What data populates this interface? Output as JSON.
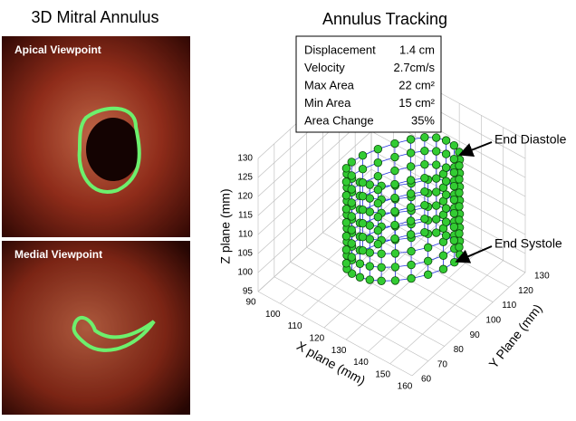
{
  "left": {
    "title": "3D Mitral Annulus",
    "panels": [
      "Apical Viewpoint",
      "Medial Viewpoint"
    ]
  },
  "right": {
    "title": "Annulus Tracking",
    "stats": [
      [
        "Displacement",
        "1.4 cm"
      ],
      [
        "Velocity",
        "2.7cm/s"
      ],
      [
        "Max Area",
        "22 cm²"
      ],
      [
        "Min Area",
        "15 cm²"
      ],
      [
        "Area Change",
        "35%"
      ]
    ],
    "annotations": [
      "End Diastole",
      "End Systole"
    ],
    "z_axis": {
      "label": "Z plane (mm)",
      "ticks": [
        "95",
        "100",
        "105",
        "110",
        "115",
        "120",
        "125",
        "130"
      ]
    },
    "x_axis": {
      "label": "X plane (mm)",
      "ticks": [
        "90",
        "100",
        "110",
        "120",
        "130",
        "140",
        "150",
        "160"
      ]
    },
    "y_axis": {
      "label": "Y Plane (mm)",
      "ticks": [
        "60",
        "70",
        "80",
        "90",
        "100",
        "110",
        "120",
        "130"
      ]
    }
  }
}
